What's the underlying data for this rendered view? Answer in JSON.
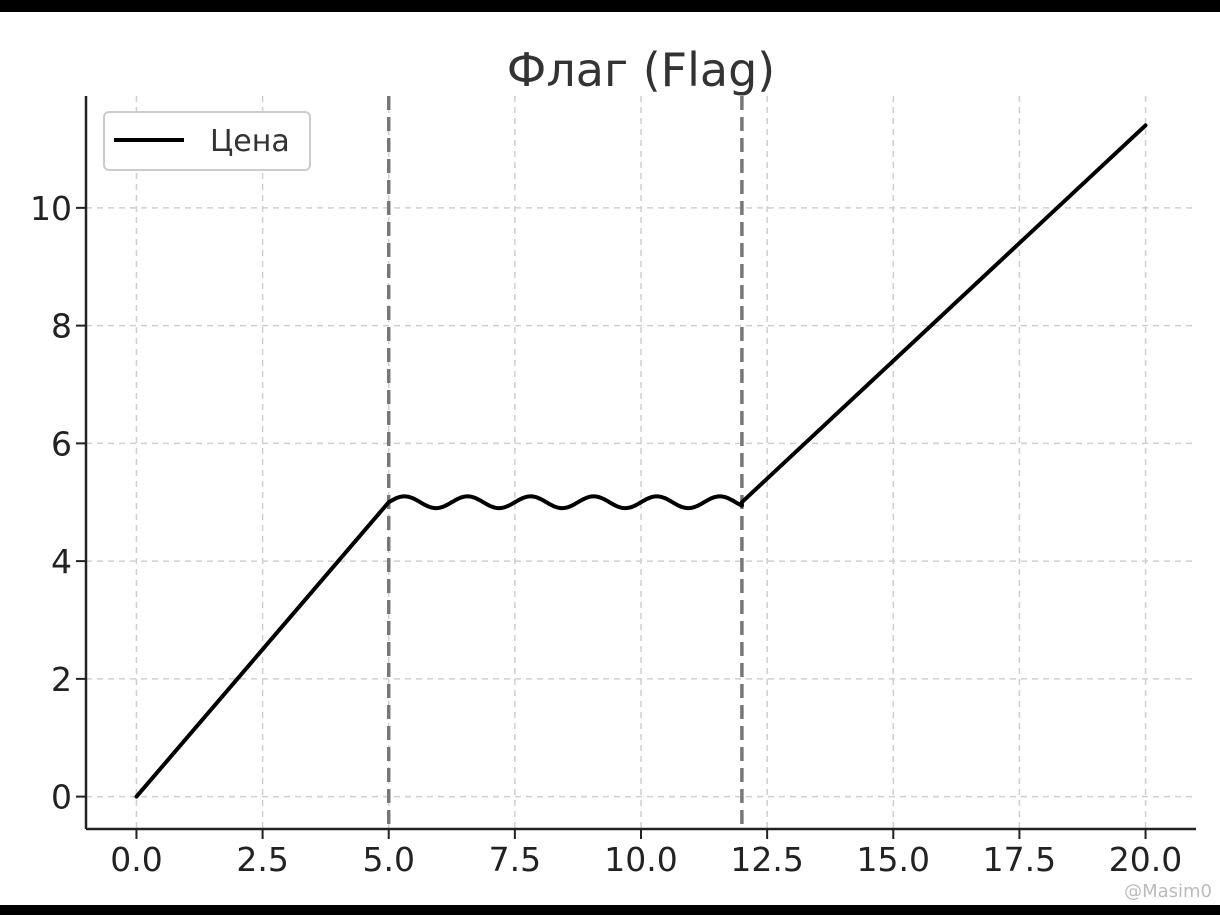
{
  "chart_data": {
    "type": "line",
    "title": "Флаг (Flag)",
    "xlabel": "",
    "ylabel": "",
    "xlim": [
      -1,
      21
    ],
    "ylim": [
      -0.55,
      11.9
    ],
    "grid": true,
    "legend_position": "top-left",
    "xticks": [
      0,
      2.5,
      5,
      7.5,
      10,
      12.5,
      15,
      17.5,
      20
    ],
    "xtick_labels": [
      "0.0",
      "2.5",
      "5.0",
      "7.5",
      "10.0",
      "12.5",
      "15.0",
      "17.5",
      "20.0"
    ],
    "yticks": [
      0,
      2,
      4,
      6,
      8,
      10
    ],
    "ytick_labels": [
      "0",
      "2",
      "4",
      "6",
      "8",
      "10"
    ],
    "series": [
      {
        "name": "Цена",
        "color": "#000000",
        "segments": [
          {
            "kind": "linear",
            "x": [
              0,
              5
            ],
            "y": [
              0,
              5
            ]
          },
          {
            "kind": "oscillation",
            "x": [
              5,
              12
            ],
            "center": 5,
            "amplitude": 0.1,
            "cycles": 5.6
          },
          {
            "kind": "linear",
            "x": [
              12,
              20
            ],
            "y": [
              5,
              11.4
            ]
          }
        ]
      }
    ],
    "vlines": [
      {
        "x": 5,
        "color": "#777777",
        "style": "dashed"
      },
      {
        "x": 12,
        "color": "#777777",
        "style": "dashed"
      }
    ]
  },
  "watermark": "@Masim0"
}
